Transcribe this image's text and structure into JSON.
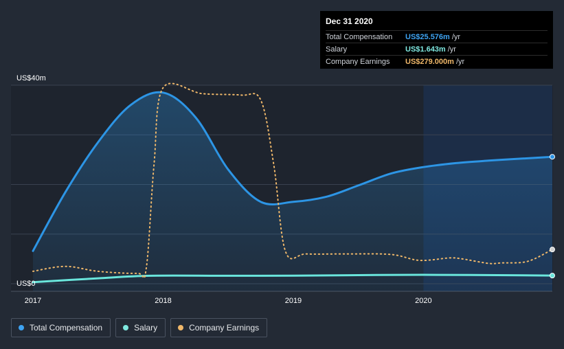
{
  "tooltip": {
    "date": "Dec 31 2020",
    "rows": [
      {
        "label": "Total Compensation",
        "value": "US$25.576m",
        "unit": "/yr",
        "color": "#3ea3f2"
      },
      {
        "label": "Salary",
        "value": "US$1.643m",
        "unit": "/yr",
        "color": "#7fe8e0"
      },
      {
        "label": "Company Earnings",
        "value": "US$279.000m",
        "unit": "/yr",
        "color": "#f0b86a"
      }
    ]
  },
  "colors": {
    "background": "#232a35",
    "total": "#2d95e5",
    "salary": "#6ae6dc",
    "earnings": "#f0b86a",
    "highlight": "#1c2d47"
  },
  "chart_data": {
    "type": "line",
    "y_axis_labels": [
      "US$40m",
      "US$0"
    ],
    "ylim": [
      0,
      40
    ],
    "xlim": [
      2017.0,
      2020.99
    ],
    "x_ticks": [
      {
        "value": 2017.0,
        "label": "2017"
      },
      {
        "value": 2018.0,
        "label": "2018"
      },
      {
        "value": 2019.0,
        "label": "2019"
      },
      {
        "value": 2020.0,
        "label": "2020"
      }
    ],
    "grid": true,
    "highlight_from": 2020.0,
    "series": [
      {
        "name": "Total Compensation",
        "points": [
          [
            2017.0,
            6.6
          ],
          [
            2017.25,
            18.5
          ],
          [
            2017.5,
            28.5
          ],
          [
            2017.75,
            36.0
          ],
          [
            2018.0,
            38.5
          ],
          [
            2018.25,
            33.5
          ],
          [
            2018.5,
            23.0
          ],
          [
            2018.75,
            16.5
          ],
          [
            2019.0,
            16.5
          ],
          [
            2019.25,
            17.5
          ],
          [
            2019.5,
            19.8
          ],
          [
            2019.75,
            22.2
          ],
          [
            2020.0,
            23.5
          ],
          [
            2020.25,
            24.3
          ],
          [
            2020.5,
            24.8
          ],
          [
            2020.75,
            25.2
          ],
          [
            2020.99,
            25.576
          ]
        ]
      },
      {
        "name": "Salary",
        "points": [
          [
            2017.0,
            0.3
          ],
          [
            2017.5,
            1.1
          ],
          [
            2017.9,
            1.6
          ],
          [
            2018.5,
            1.6
          ],
          [
            2019.0,
            1.62
          ],
          [
            2020.0,
            1.8
          ],
          [
            2020.99,
            1.643
          ]
        ]
      },
      {
        "name": "Company Earnings",
        "points": [
          [
            2017.0,
            2.5
          ],
          [
            2017.25,
            3.5
          ],
          [
            2017.5,
            2.5
          ],
          [
            2017.8,
            2.1
          ],
          [
            2017.87,
            3.0
          ],
          [
            2017.93,
            24.0
          ],
          [
            2018.0,
            39.5
          ],
          [
            2018.3,
            38.3
          ],
          [
            2018.6,
            38.0
          ],
          [
            2018.75,
            37.0
          ],
          [
            2018.85,
            24.0
          ],
          [
            2018.94,
            6.5
          ],
          [
            2019.1,
            6.0
          ],
          [
            2019.4,
            6.0
          ],
          [
            2019.75,
            5.9
          ],
          [
            2019.97,
            4.7
          ],
          [
            2020.2,
            5.2
          ],
          [
            2020.3,
            5.0
          ],
          [
            2020.5,
            4.1
          ],
          [
            2020.6,
            4.2
          ],
          [
            2020.8,
            4.5
          ],
          [
            2020.99,
            6.9
          ]
        ]
      }
    ]
  },
  "legend": [
    {
      "label": "Total Compensation",
      "color": "#3ea3f2"
    },
    {
      "label": "Salary",
      "color": "#7fe8e0"
    },
    {
      "label": "Company Earnings",
      "color": "#f0b86a"
    }
  ]
}
